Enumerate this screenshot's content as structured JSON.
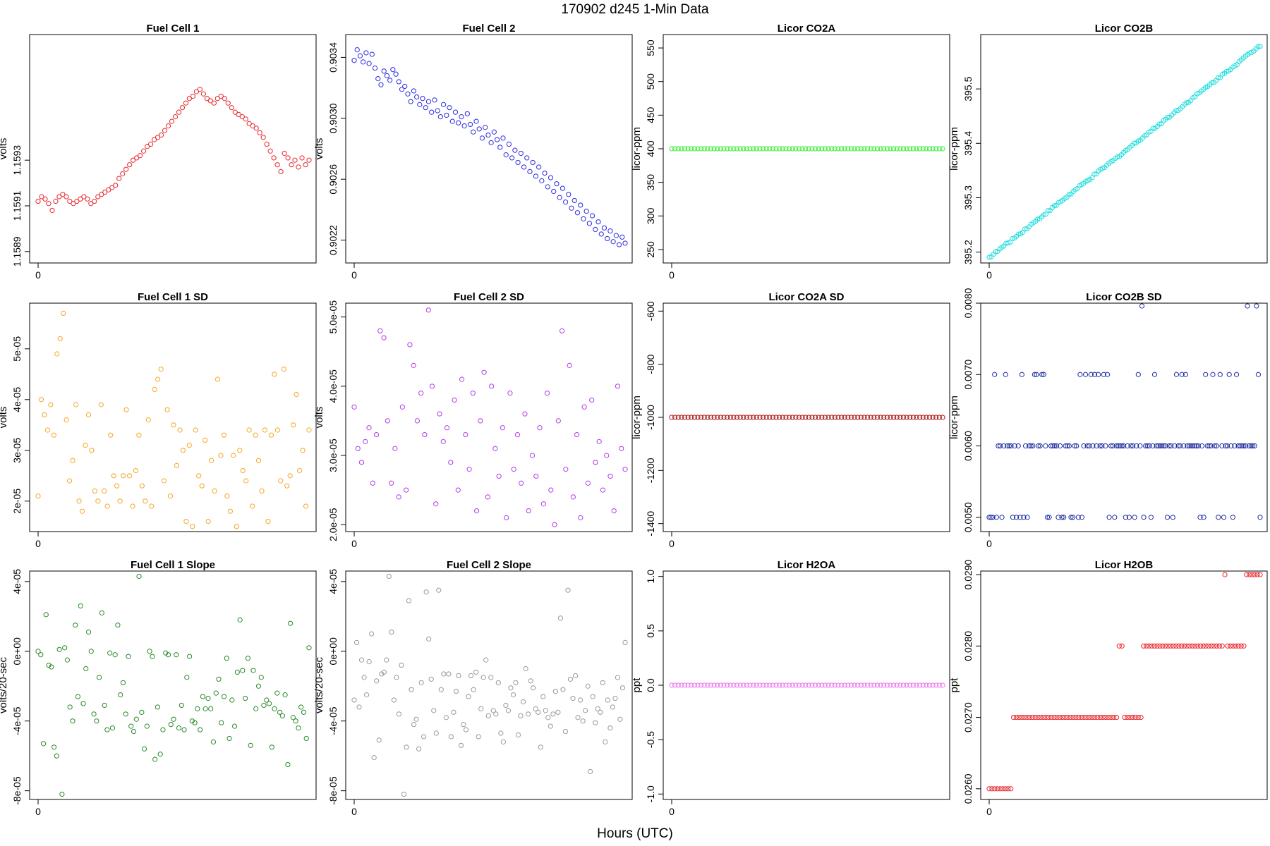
{
  "page_title": "170902   d245   1-Min Data",
  "xlabel": "Hours (UTC)",
  "chart_data": [
    {
      "type": "scatter",
      "title": "Fuel Cell 1",
      "ylabel": "volts",
      "color": "#e8272b",
      "ylim": [
        1.15885,
        1.15985
      ],
      "yticks": [
        "1.1589",
        "1.1591",
        "1.1593"
      ],
      "ytick_values": [
        1.1589,
        1.1591,
        1.1593
      ],
      "xticks": [
        "0"
      ],
      "y": [
        1.15912,
        1.15914,
        1.15913,
        1.15911,
        1.15908,
        1.15912,
        1.15914,
        1.15915,
        1.15914,
        1.15912,
        1.15911,
        1.15912,
        1.15913,
        1.15914,
        1.15913,
        1.15911,
        1.15912,
        1.15914,
        1.15915,
        1.15916,
        1.15917,
        1.15918,
        1.15919,
        1.15922,
        1.15924,
        1.15926,
        1.15928,
        1.1593,
        1.15931,
        1.15932,
        1.15934,
        1.15936,
        1.15937,
        1.15939,
        1.1594,
        1.15941,
        1.15943,
        1.15945,
        1.15947,
        1.15949,
        1.15951,
        1.15953,
        1.15955,
        1.15957,
        1.15958,
        1.1596,
        1.15961,
        1.15959,
        1.15957,
        1.15956,
        1.15955,
        1.15957,
        1.15958,
        1.15957,
        1.15955,
        1.15953,
        1.15951,
        1.1595,
        1.15949,
        1.15948,
        1.15946,
        1.15945,
        1.15944,
        1.15942,
        1.1594,
        1.15937,
        1.15934,
        1.15931,
        1.15928,
        1.15925,
        1.15933,
        1.15931,
        1.15928,
        1.1593,
        1.15927,
        1.15931,
        1.15928,
        1.1593
      ]
    },
    {
      "type": "scatter",
      "title": "Fuel Cell 2",
      "ylabel": "volts",
      "color": "#2b2be0",
      "ylim": [
        0.90205,
        0.90355
      ],
      "yticks": [
        "0.9022",
        "0.9026",
        "0.9030",
        "0.9034"
      ],
      "ytick_values": [
        0.9022,
        0.9026,
        0.903,
        0.9034
      ],
      "xticks": [
        "0"
      ],
      "y": [
        0.90338,
        0.90345,
        0.90341,
        0.90337,
        0.90343,
        0.90336,
        0.90342,
        0.90333,
        0.90326,
        0.90322,
        0.90331,
        0.90328,
        0.90325,
        0.90332,
        0.90329,
        0.90324,
        0.90319,
        0.90321,
        0.90316,
        0.90311,
        0.90318,
        0.90314,
        0.90309,
        0.90313,
        0.90307,
        0.90311,
        0.90304,
        0.90312,
        0.90305,
        0.90301,
        0.90309,
        0.90302,
        0.90307,
        0.90298,
        0.90304,
        0.90297,
        0.90301,
        0.90295,
        0.90303,
        0.90296,
        0.90291,
        0.90298,
        0.90293,
        0.90287,
        0.90294,
        0.90289,
        0.90284,
        0.90291,
        0.90286,
        0.90281,
        0.90287,
        0.90276,
        0.90283,
        0.90274,
        0.90279,
        0.90271,
        0.90277,
        0.90268,
        0.90274,
        0.90265,
        0.90271,
        0.90262,
        0.90268,
        0.90259,
        0.90264,
        0.90255,
        0.90261,
        0.90252,
        0.90257,
        0.90248,
        0.90254,
        0.90245,
        0.9025,
        0.90241,
        0.90246,
        0.90238,
        0.90243,
        0.90234,
        0.90239,
        0.90231,
        0.90236,
        0.90227,
        0.90232,
        0.90224,
        0.90228,
        0.90221,
        0.90226,
        0.90219,
        0.90223,
        0.90217,
        0.90222,
        0.90218
      ]
    },
    {
      "type": "scatter",
      "title": "Licor CO2A",
      "ylabel": "licor-ppm",
      "color": "#33ee33",
      "ylim": [
        230,
        570
      ],
      "yticks": [
        "250",
        "300",
        "350",
        "400",
        "450",
        "500",
        "550"
      ],
      "ytick_values": [
        250,
        300,
        350,
        400,
        450,
        500,
        550
      ],
      "xticks": [
        "0"
      ],
      "constant": 400,
      "n": 84
    },
    {
      "type": "scatter",
      "title": "Licor CO2B",
      "ylabel": "licor-ppm",
      "color": "#22dddd",
      "ylim": [
        395.18,
        395.6
      ],
      "yticks": [
        "395.2",
        "395.3",
        "395.4",
        "395.5"
      ],
      "ytick_values": [
        395.2,
        395.3,
        395.4,
        395.5
      ],
      "xticks": [
        "0"
      ],
      "linear": [
        395.19,
        395.58
      ],
      "n": 130
    },
    {
      "type": "scatter",
      "title": "Fuel Cell 1 SD",
      "ylabel": "volts",
      "color": "#f5a623",
      "ylim": [
        1.4e-05,
        5.9e-05
      ],
      "yticks": [
        "2e-05",
        "3e-05",
        "4e-05",
        "5e-05"
      ],
      "ytick_values": [
        2e-05,
        3e-05,
        4e-05,
        5e-05
      ],
      "xticks": [
        "0"
      ],
      "y": [
        2.1e-05,
        4e-05,
        3.7e-05,
        3.4e-05,
        3.9e-05,
        3.3e-05,
        4.9e-05,
        5.2e-05,
        5.7e-05,
        3.6e-05,
        2.4e-05,
        2.8e-05,
        3.9e-05,
        2e-05,
        1.8e-05,
        3.1e-05,
        3.7e-05,
        3e-05,
        2.2e-05,
        2e-05,
        3.9e-05,
        2.2e-05,
        1.9e-05,
        3.3e-05,
        2.5e-05,
        2.3e-05,
        2e-05,
        2.5e-05,
        3.8e-05,
        2.5e-05,
        1.9e-05,
        2.6e-05,
        3.3e-05,
        2.3e-05,
        2e-05,
        3.6e-05,
        1.9e-05,
        4.2e-05,
        4.4e-05,
        4.6e-05,
        2.4e-05,
        3.8e-05,
        2.1e-05,
        3.5e-05,
        2.7e-05,
        3.4e-05,
        3e-05,
        1.6e-05,
        3.1e-05,
        1.5e-05,
        3.4e-05,
        2.5e-05,
        2.3e-05,
        3.2e-05,
        1.6e-05,
        2.8e-05,
        2.2e-05,
        4.4e-05,
        2.9e-05,
        3.3e-05,
        2.1e-05,
        1.8e-05,
        2.9e-05,
        1.5e-05,
        3e-05,
        2.6e-05,
        2.4e-05,
        3.4e-05,
        1.9e-05,
        3.3e-05,
        2.8e-05,
        2.2e-05,
        3.4e-05,
        1.6e-05,
        3.3e-05,
        4.5e-05,
        3.4e-05,
        2.4e-05,
        4.6e-05,
        2.3e-05,
        2.5e-05,
        3.5e-05,
        4.1e-05,
        2.6e-05,
        3e-05,
        1.9e-05,
        3.4e-05
      ]
    },
    {
      "type": "scatter",
      "title": "Fuel Cell 2 SD",
      "ylabel": "volts",
      "color": "#b33be6",
      "ylim": [
        1.9e-05,
        5.2e-05
      ],
      "yticks": [
        "2.0e-05",
        "3.0e-05",
        "4.0e-05",
        "5.0e-05"
      ],
      "ytick_values": [
        2e-05,
        3e-05,
        4e-05,
        5e-05
      ],
      "xticks": [
        "0"
      ],
      "y": [
        3.7e-05,
        3.1e-05,
        2.9e-05,
        3.2e-05,
        3.4e-05,
        2.6e-05,
        3.3e-05,
        4.8e-05,
        4.7e-05,
        3.5e-05,
        2.6e-05,
        3.1e-05,
        2.4e-05,
        3.7e-05,
        2.5e-05,
        4.6e-05,
        4.3e-05,
        3.5e-05,
        3.9e-05,
        3.3e-05,
        5.1e-05,
        4e-05,
        2.3e-05,
        3.6e-05,
        3.2e-05,
        3.4e-05,
        2.9e-05,
        3.8e-05,
        2.5e-05,
        4.1e-05,
        3.3e-05,
        2.8e-05,
        3.9e-05,
        2.2e-05,
        3.5e-05,
        4.2e-05,
        2.4e-05,
        4e-05,
        3.1e-05,
        2.7e-05,
        3.4e-05,
        2.1e-05,
        3.9e-05,
        2.8e-05,
        3.3e-05,
        2.6e-05,
        3.6e-05,
        2.2e-05,
        3e-05,
        2.7e-05,
        3.4e-05,
        2.3e-05,
        3.9e-05,
        2.5e-05,
        2e-05,
        3.5e-05,
        4.8e-05,
        2.8e-05,
        4.3e-05,
        2.4e-05,
        3.3e-05,
        2.1e-05,
        3.7e-05,
        2.6e-05,
        3.8e-05,
        2.9e-05,
        3.2e-05,
        2.5e-05,
        3e-05,
        2.7e-05,
        2.2e-05,
        4e-05,
        3.1e-05,
        2.8e-05
      ]
    },
    {
      "type": "scatter",
      "title": "Licor CO2A SD",
      "ylabel": "licor-ppm",
      "color": "#aa1111",
      "ylim": [
        -1430,
        -570
      ],
      "yticks": [
        "-1400",
        "-1200",
        "-1000",
        "-800",
        "-600"
      ],
      "ytick_values": [
        -1400,
        -1200,
        -1000,
        -800,
        -600
      ],
      "xticks": [
        "0"
      ],
      "constant": -1000,
      "n": 84
    },
    {
      "type": "scatter",
      "title": "Licor CO2B SD",
      "ylabel": "licor-ppm",
      "color": "#1a2a9c",
      "ylim": [
        0.0048,
        0.008
      ],
      "yticks": [
        "0.0050",
        "0.0060",
        "0.0070",
        "0.0080"
      ],
      "ytick_values": [
        0.005,
        0.006,
        0.007,
        0.008
      ],
      "xticks": [
        "0"
      ],
      "levels": [
        0.005,
        0.006,
        0.007,
        0.008
      ],
      "n": 150
    },
    {
      "type": "scatter",
      "title": "Fuel Cell 1 Slope",
      "ylabel": "volts/20-sec",
      "color": "#2a8a2a",
      "ylim": [
        -8.5e-05,
        4.6e-05
      ],
      "yticks": [
        "-8e-05",
        "-4e-05",
        "0e+00",
        "4e-05"
      ],
      "ytick_values": [
        -8e-05,
        -4e-05,
        0,
        4e-05
      ],
      "xticks": [
        "0"
      ],
      "y": [
        0,
        -2e-06,
        -5.3e-05,
        2.1e-05,
        -8e-06,
        -9e-06,
        -5.5e-05,
        -6e-05,
        1e-06,
        -8.2e-05,
        2e-06,
        -5e-06,
        -3.2e-05,
        -4e-05,
        1.5e-05,
        -2.6e-05,
        2.6e-05,
        -3e-05,
        -1e-05,
        1.1e-05,
        0,
        -3.6e-05,
        -4e-05,
        -1.5e-05,
        2.2e-05,
        -3.1e-05,
        -4.5e-05,
        -1e-06,
        -4.4e-05,
        -2e-06,
        1.5e-05,
        -2.5e-05,
        -1.8e-05,
        -3.6e-05,
        -3e-06,
        -4.3e-05,
        -4.6e-05,
        -3.9e-05,
        4.3e-05,
        -3.5e-05,
        -5.6e-05,
        -4.3e-05,
        0,
        -3e-06,
        -6.2e-05,
        -3.2e-05,
        -5.9e-05,
        -4.5e-05,
        -1e-06,
        -2e-06,
        -4.2e-05,
        -3.9e-05,
        -2e-06,
        -4.4e-05,
        -3.1e-05,
        -4.5e-05,
        -1.5e-05,
        -3e-06,
        -4e-05,
        -4.1e-05,
        -3.3e-05,
        -4.5e-05,
        -2.6e-05,
        -3.3e-05,
        -2.7e-05,
        -3.3e-05,
        -5.2e-05,
        -2.4e-05,
        -1.6e-05,
        -4.1e-05,
        -2.6e-05,
        -4e-06,
        -5e-05,
        -2.8e-05,
        -4.3e-05,
        -1.2e-05,
        1.8e-05,
        -1.1e-05,
        -2.7e-05,
        -4e-06,
        -5.4e-05,
        -1.1e-05,
        -3.3e-05,
        -2e-05,
        -1.5e-05,
        -3.1e-05,
        -2.8e-05,
        -3e-05,
        -5.5e-05,
        -3.3e-05,
        -2.4e-05,
        -3.5e-05,
        -3.7e-05,
        -2.5e-05,
        -6.5e-05,
        1.6e-05,
        -3.8e-05,
        -4e-05,
        -4.4e-05,
        -3.2e-05,
        -3.5e-05,
        -5e-05,
        2e-06
      ]
    },
    {
      "type": "scatter",
      "title": "Fuel Cell 2 Slope",
      "ylabel": "volts/20-sec",
      "color": "#999999",
      "ylim": [
        -8.5e-05,
        4.6e-05
      ],
      "yticks": [
        "-8e-05",
        "-4e-05",
        "0e+00",
        "4e-05"
      ],
      "ytick_values": [
        -8e-05,
        -4e-05,
        0,
        4e-05
      ],
      "xticks": [
        "0"
      ],
      "y": [
        -2.8e-05,
        5e-06,
        -3.2e-05,
        -5e-06,
        -1.5e-05,
        -2.5e-05,
        -6e-06,
        1e-05,
        -6.1e-05,
        -1.7e-05,
        -5.1e-05,
        -1.3e-05,
        -1.2e-05,
        -5e-06,
        4.3e-05,
        1.1e-05,
        -2.8e-05,
        -1.5e-05,
        -3.6e-05,
        -8e-06,
        -8.2e-05,
        -5.5e-05,
        2.9e-05,
        -2.2e-05,
        -4.2e-05,
        -3.9e-05,
        -5.6e-05,
        -1.8e-05,
        -4.9e-05,
        3.4e-05,
        7e-06,
        -1.6e-05,
        -3.4e-05,
        -4.7e-05,
        3.5e-05,
        -2.2e-05,
        -1.3e-05,
        -3.8e-05,
        -1.3e-05,
        -4.9e-05,
        -3.5e-05,
        -2.3e-05,
        -1.4e-05,
        -5.4e-05,
        -4.2e-05,
        -4.5e-05,
        -2.6e-05,
        -1.4e-05,
        -2.2e-05,
        -1.2e-05,
        -4.9e-05,
        -3.3e-05,
        -1.5e-05,
        -5e-06,
        -3.7e-05,
        -1.5e-05,
        -3.4e-05,
        -3.6e-05,
        -1.8e-05,
        -4.7e-05,
        -5.2e-05,
        -3.1e-05,
        -3.4e-05,
        -2.1e-05,
        -2.5e-05,
        -1.8e-05,
        -4.8e-05,
        -3.7e-05,
        -2.9e-05,
        -1e-05,
        -3.6e-05,
        -1.7e-05,
        -2.1e-05,
        -3.3e-05,
        -3.5e-05,
        -5.5e-05,
        -2.6e-05,
        -3.4e-05,
        -3.8e-05,
        -4.3e-05,
        -3.6e-05,
        -2.3e-05,
        -3.5e-05,
        1.9e-05,
        -2.2e-05,
        -4.6e-05,
        3.5e-05,
        -1.6e-05,
        -2.7e-05,
        -1.4e-05,
        -3.8e-05,
        -2.8e-05,
        -4e-05,
        -3.4e-05,
        -2e-05,
        -6.9e-05,
        -2.6e-05,
        -4.1e-05,
        -3.3e-05,
        -3.5e-05,
        -1.8e-05,
        -5.2e-05,
        -2.8e-05,
        -4.4e-05,
        -3.2e-05,
        -2.7e-05,
        -1.5e-05,
        -3.9e-05,
        -2.1e-05,
        5e-06
      ]
    },
    {
      "type": "scatter",
      "title": "Licor H2OA",
      "ylabel": "ppt",
      "color": "#ee77ee",
      "ylim": [
        -1.05,
        1.05
      ],
      "yticks": [
        "-1.0",
        "-0.5",
        "0.0",
        "0.5",
        "1.0"
      ],
      "ytick_values": [
        -1,
        -0.5,
        0,
        0.5,
        1
      ],
      "xticks": [
        "0"
      ],
      "constant": 0,
      "n": 84
    },
    {
      "type": "scatter",
      "title": "Licor H2OB",
      "ylabel": "ppt",
      "color": "#e8272b",
      "ylim": [
        0.02585,
        0.02905
      ],
      "yticks": [
        "0.0260",
        "0.0270",
        "0.0280",
        "0.0290"
      ],
      "ytick_values": [
        0.026,
        0.027,
        0.028,
        0.029
      ],
      "xticks": [
        "0"
      ],
      "segments": [
        [
          0.026,
          0,
          9
        ],
        [
          0.027,
          9,
          48
        ],
        [
          0.028,
          48,
          50
        ],
        [
          0.027,
          50,
          57
        ],
        [
          0.028,
          57,
          87
        ],
        [
          0.029,
          87,
          88
        ],
        [
          0.028,
          88,
          95
        ],
        [
          0.029,
          95,
          101
        ]
      ]
    }
  ]
}
